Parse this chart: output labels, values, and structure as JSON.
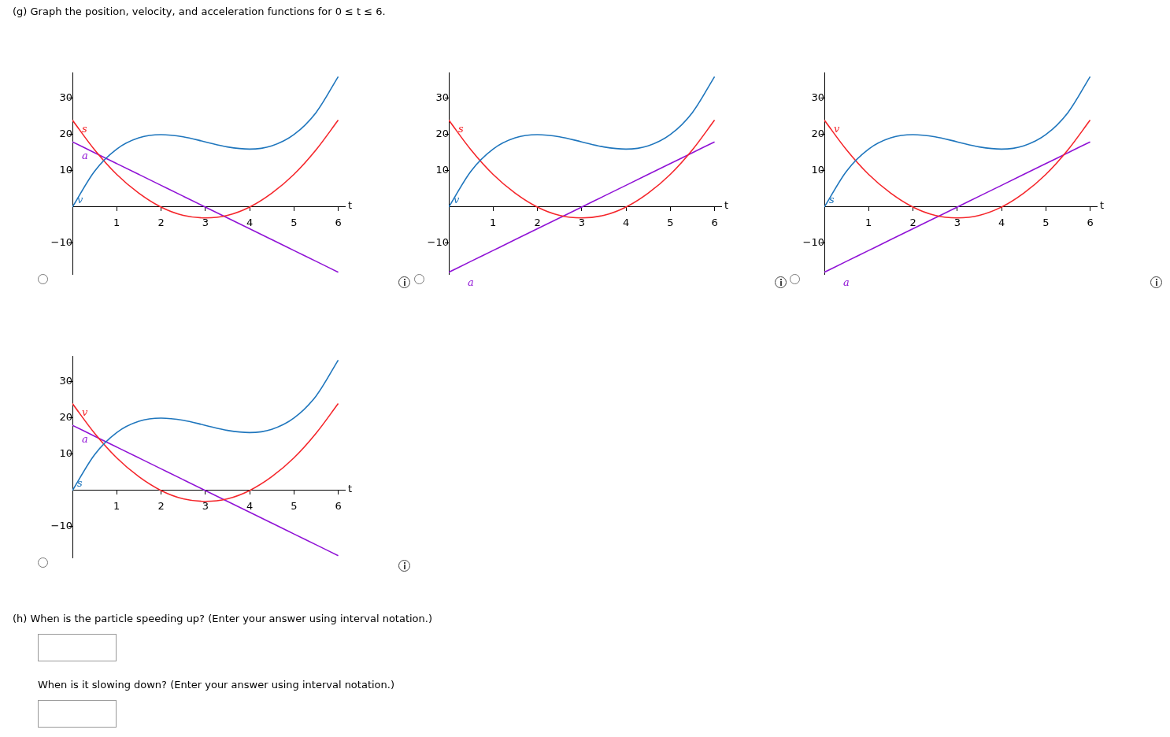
{
  "chart_data": [
    {
      "type": "line",
      "title": "(g) Graph the position, velocity, and acceleration functions for 0 ≤ t ≤ 6.",
      "xlabel": "t",
      "marker": "none",
      "x": [
        0,
        0.5,
        1,
        1.5,
        2,
        2.5,
        3,
        3.5,
        4,
        4.5,
        5,
        5.5,
        6
      ],
      "xlim": [
        0,
        6.15
      ],
      "ylim": [
        -18.5,
        37
      ],
      "xticks": [
        1,
        2,
        3,
        4,
        5,
        6
      ],
      "yticks": [
        -10,
        10,
        20,
        30
      ],
      "series": [
        {
          "name": "v",
          "color": "#1f76bd",
          "values": [
            0,
            9.9,
            16,
            19.1,
            20,
            19.4,
            18,
            16.6,
            16,
            16.9,
            20,
            26.1,
            36
          ]
        },
        {
          "name": "s",
          "color": "#f5262b",
          "values": [
            24,
            15.8,
            9,
            3.8,
            0,
            -2.3,
            -3,
            -2.3,
            0,
            3.8,
            9,
            15.8,
            24
          ]
        },
        {
          "name": "a",
          "color": "#9013d6",
          "values": [
            18,
            15,
            12,
            9,
            6,
            3,
            0,
            -3,
            -6,
            -9,
            -12,
            -15,
            -18
          ]
        }
      ]
    },
    {
      "type": "line",
      "xlabel": "t",
      "marker": "none",
      "x": [
        0,
        0.5,
        1,
        1.5,
        2,
        2.5,
        3,
        3.5,
        4,
        4.5,
        5,
        5.5,
        6
      ],
      "xlim": [
        0,
        6.15
      ],
      "ylim": [
        -18.5,
        37
      ],
      "xticks": [
        1,
        2,
        3,
        4,
        5,
        6
      ],
      "yticks": [
        -10,
        10,
        20,
        30
      ],
      "series": [
        {
          "name": "v",
          "color": "#1f76bd",
          "values": [
            0,
            9.9,
            16,
            19.1,
            20,
            19.4,
            18,
            16.6,
            16,
            16.9,
            20,
            26.1,
            36
          ]
        },
        {
          "name": "s",
          "color": "#f5262b",
          "values": [
            24,
            15.8,
            9,
            3.8,
            0,
            -2.3,
            -3,
            -2.3,
            0,
            3.8,
            9,
            15.8,
            24
          ]
        },
        {
          "name": "a",
          "color": "#9013d6",
          "values": [
            -18,
            -15,
            -12,
            -9,
            -6,
            -3,
            0,
            3,
            6,
            9,
            12,
            15,
            18
          ]
        }
      ]
    },
    {
      "type": "line",
      "xlabel": "t",
      "marker": "none",
      "x": [
        0,
        0.5,
        1,
        1.5,
        2,
        2.5,
        3,
        3.5,
        4,
        4.5,
        5,
        5.5,
        6
      ],
      "xlim": [
        0,
        6.15
      ],
      "ylim": [
        -18.5,
        37
      ],
      "xticks": [
        1,
        2,
        3,
        4,
        5,
        6
      ],
      "yticks": [
        -10,
        10,
        20,
        30
      ],
      "series": [
        {
          "name": "s",
          "color": "#1f76bd",
          "values": [
            0,
            9.9,
            16,
            19.1,
            20,
            19.4,
            18,
            16.6,
            16,
            16.9,
            20,
            26.1,
            36
          ]
        },
        {
          "name": "v",
          "color": "#f5262b",
          "values": [
            24,
            15.8,
            9,
            3.8,
            0,
            -2.3,
            -3,
            -2.3,
            0,
            3.8,
            9,
            15.8,
            24
          ]
        },
        {
          "name": "a",
          "color": "#9013d6",
          "values": [
            -18,
            -15,
            -12,
            -9,
            -6,
            -3,
            0,
            3,
            6,
            9,
            12,
            15,
            18
          ]
        }
      ]
    },
    {
      "type": "line",
      "xlabel": "t",
      "marker": "none",
      "x": [
        0,
        0.5,
        1,
        1.5,
        2,
        2.5,
        3,
        3.5,
        4,
        4.5,
        5,
        5.5,
        6
      ],
      "xlim": [
        0,
        6.15
      ],
      "ylim": [
        -18.5,
        37
      ],
      "xticks": [
        1,
        2,
        3,
        4,
        5,
        6
      ],
      "yticks": [
        -10,
        10,
        20,
        30
      ],
      "annotations": [
        "(h) When is the particle speeding up? (Enter your answer using interval notation.)",
        "When is it slowing down? (Enter your answer using interval notation.)"
      ],
      "series": [
        {
          "name": "s",
          "color": "#1f76bd",
          "values": [
            0,
            9.9,
            16,
            19.1,
            20,
            19.4,
            18,
            16.6,
            16,
            16.9,
            20,
            26.1,
            36
          ]
        },
        {
          "name": "v",
          "color": "#f5262b",
          "values": [
            24,
            15.8,
            9,
            3.8,
            0,
            -2.3,
            -3,
            -2.3,
            0,
            3.8,
            9,
            15.8,
            24
          ]
        },
        {
          "name": "a",
          "color": "#9013d6",
          "values": [
            18,
            15,
            12,
            9,
            6,
            3,
            0,
            -3,
            -6,
            -9,
            -12,
            -15,
            -18
          ]
        }
      ]
    }
  ]
}
